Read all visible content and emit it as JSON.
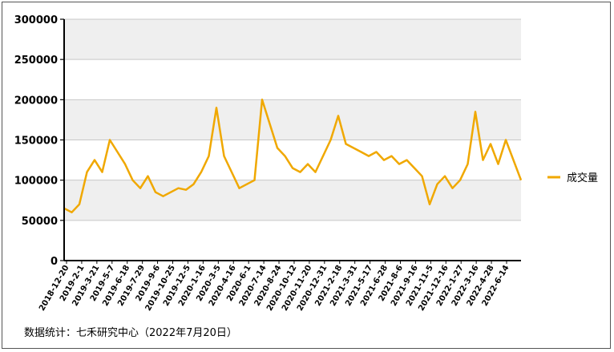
{
  "chart_data": {
    "type": "line",
    "title": "",
    "xlabel": "",
    "ylabel": "",
    "ylim": [
      0,
      300000
    ],
    "y_ticks": [
      "0",
      "50000",
      "100000",
      "150000",
      "200000",
      "250000",
      "300000"
    ],
    "x_tick_labels": [
      "2018-12-20",
      "2019-2-1",
      "2019-3-21",
      "2019-5-7",
      "2019-6-18",
      "2019-7-29",
      "2019-9-6",
      "2019-10-25",
      "2019-12-5",
      "2020-1-16",
      "2020-3-5",
      "2020-4-16",
      "2020-6-1",
      "2020-7-14",
      "2020-8-24",
      "2020-10-12",
      "2020-11-20",
      "2020-12-31",
      "2021-2-18",
      "2021-3-31",
      "2021-5-17",
      "2021-6-28",
      "2021-8-6",
      "2021-9-16",
      "2021-11-5",
      "2021-12-16",
      "2022-1-27",
      "2022-3-16",
      "2022-4-28",
      "2022-6-14"
    ],
    "grid": true,
    "legend_position": "right",
    "series": [
      {
        "name": "成交量",
        "color": "#F0A800",
        "x": [
          "2018-12-20",
          "2019-1-10",
          "2019-2-1",
          "2019-2-25",
          "2019-3-21",
          "2019-4-12",
          "2019-5-7",
          "2019-5-27",
          "2019-6-18",
          "2019-7-8",
          "2019-7-29",
          "2019-8-16",
          "2019-9-6",
          "2019-9-30",
          "2019-10-25",
          "2019-11-15",
          "2019-12-5",
          "2019-12-25",
          "2020-1-16",
          "2020-2-12",
          "2020-3-5",
          "2020-3-25",
          "2020-4-16",
          "2020-5-8",
          "2020-6-1",
          "2020-6-22",
          "2020-7-14",
          "2020-8-3",
          "2020-8-24",
          "2020-9-15",
          "2020-10-12",
          "2020-10-30",
          "2020-11-20",
          "2020-12-10",
          "2020-12-31",
          "2021-1-25",
          "2021-2-18",
          "2021-3-10",
          "2021-3-31",
          "2021-4-23",
          "2021-5-17",
          "2021-6-7",
          "2021-6-28",
          "2021-7-16",
          "2021-8-6",
          "2021-8-26",
          "2021-9-16",
          "2021-10-14",
          "2021-11-5",
          "2021-11-25",
          "2021-12-16",
          "2022-1-6",
          "2022-1-27",
          "2022-2-22",
          "2022-3-16",
          "2022-4-7",
          "2022-4-28",
          "2022-5-24",
          "2022-6-14",
          "2022-7-5",
          "2022-7-20"
        ],
        "values": [
          65000,
          60000,
          70000,
          110000,
          125000,
          110000,
          150000,
          135000,
          120000,
          100000,
          90000,
          105000,
          85000,
          80000,
          85000,
          90000,
          88000,
          95000,
          110000,
          130000,
          190000,
          130000,
          110000,
          90000,
          95000,
          100000,
          200000,
          170000,
          140000,
          130000,
          115000,
          110000,
          120000,
          110000,
          130000,
          150000,
          180000,
          145000,
          140000,
          135000,
          130000,
          135000,
          125000,
          130000,
          120000,
          125000,
          115000,
          105000,
          70000,
          95000,
          105000,
          90000,
          100000,
          120000,
          185000,
          125000,
          145000,
          120000,
          150000,
          125000,
          100000
        ]
      }
    ],
    "source_note": "数据统计：七禾研究中心（2022年7月20日）"
  }
}
